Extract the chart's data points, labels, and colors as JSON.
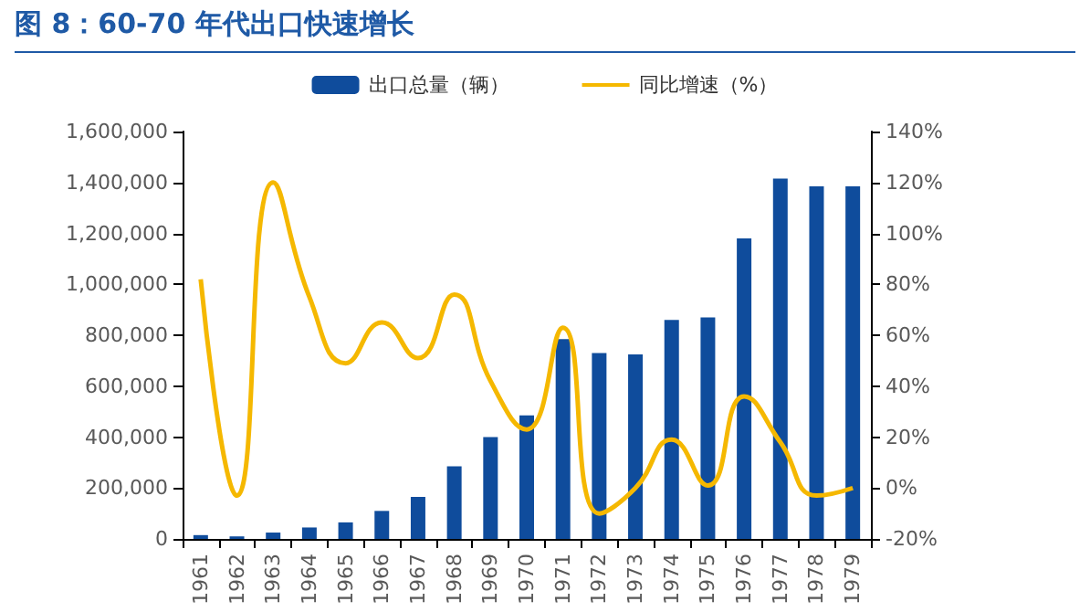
{
  "chart_data": {
    "type": "bar",
    "title": "图 8：60-70 年代出口快速增长",
    "categories": [
      "1961",
      "1962",
      "1963",
      "1964",
      "1965",
      "1966",
      "1967",
      "1968",
      "1969",
      "1970",
      "1971",
      "1972",
      "1973",
      "1974",
      "1975",
      "1976",
      "1977",
      "1978",
      "1979"
    ],
    "series": [
      {
        "name": "出口总量（辆）",
        "color": "#0f4c9c",
        "values": [
          15000,
          10000,
          25000,
          45000,
          65000,
          110000,
          165000,
          285000,
          400000,
          485000,
          785000,
          730000,
          725000,
          860000,
          870000,
          1180000,
          1415000,
          1385000,
          1385000
        ]
      },
      {
        "name": "同比增速（%）",
        "type": "line",
        "axis": "y2",
        "color": "#f5b800",
        "values": [
          82,
          -3,
          120,
          75,
          49,
          65,
          51,
          76,
          42,
          23,
          63,
          -10,
          0,
          19,
          1,
          36,
          18,
          -3,
          0
        ]
      }
    ],
    "ylim": [
      0,
      1600000
    ],
    "yticks": [
      {
        "value": 0,
        "label": "0"
      },
      {
        "value": 200000,
        "label": "200,000"
      },
      {
        "value": 400000,
        "label": "400,000"
      },
      {
        "value": 600000,
        "label": "600,000"
      },
      {
        "value": 800000,
        "label": "800,000"
      },
      {
        "value": 1000000,
        "label": "1,000,000"
      },
      {
        "value": 1200000,
        "label": "1,200,000"
      },
      {
        "value": 1400000,
        "label": "1,400,000"
      },
      {
        "value": 1600000,
        "label": "1,600,000"
      }
    ],
    "y2lim": [
      -20,
      140
    ],
    "y2ticks": [
      {
        "value": -20,
        "label": "-20%"
      },
      {
        "value": 0,
        "label": "0%"
      },
      {
        "value": 20,
        "label": "20%"
      },
      {
        "value": 40,
        "label": "40%"
      },
      {
        "value": 60,
        "label": "60%"
      },
      {
        "value": 80,
        "label": "80%"
      },
      {
        "value": 100,
        "label": "100%"
      },
      {
        "value": 120,
        "label": "120%"
      },
      {
        "value": 140,
        "label": "140%"
      }
    ],
    "legend": "top",
    "grid": false,
    "marker": "none",
    "line_style": "solid"
  }
}
